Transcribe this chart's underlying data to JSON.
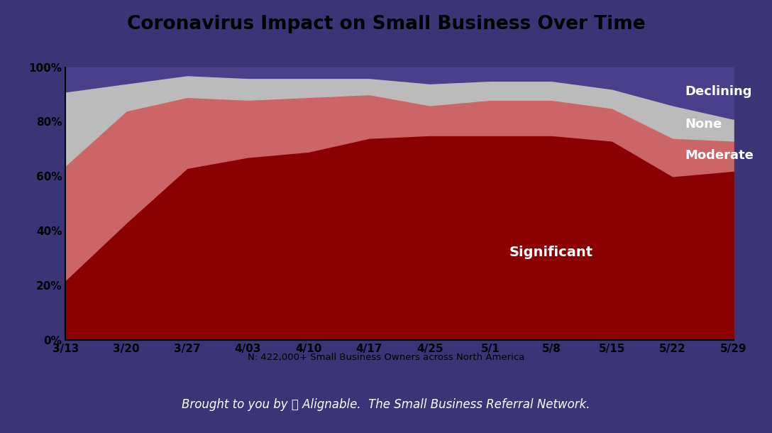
{
  "title": "Coronavirus Impact on Small Business Over Time",
  "footer": "Brought to you by Ⓢ Alignable.  The Small Business Referral Network.",
  "note": "N: 422,000+ Small Business Owners across North America",
  "x_labels": [
    "3/13",
    "3/20",
    "3/27",
    "4/03",
    "4/10",
    "4/17",
    "4/25",
    "5/1",
    "5/8",
    "5/15",
    "5/22",
    "5/29"
  ],
  "significant": [
    22,
    43,
    63,
    67,
    69,
    74,
    75,
    75,
    75,
    73,
    60,
    62
  ],
  "moderate": [
    42,
    41,
    26,
    21,
    20,
    16,
    11,
    13,
    13,
    12,
    14,
    11
  ],
  "none": [
    27,
    10,
    8,
    8,
    7,
    6,
    8,
    7,
    7,
    7,
    12,
    8
  ],
  "declining": [
    9,
    6,
    3,
    4,
    4,
    4,
    6,
    5,
    5,
    8,
    14,
    19
  ],
  "color_significant": "#8B0000",
  "color_moderate": "#CC6666",
  "color_none": "#BBBBBB",
  "color_declining": "#4A3F8A",
  "background_outer": "#3B3476",
  "background_inner": "#FFFFFF",
  "title_fontsize": 19,
  "label_fontsize": 11,
  "legend_fontsize": 13,
  "note_fontsize": 9.5,
  "footer_fontsize": 12
}
